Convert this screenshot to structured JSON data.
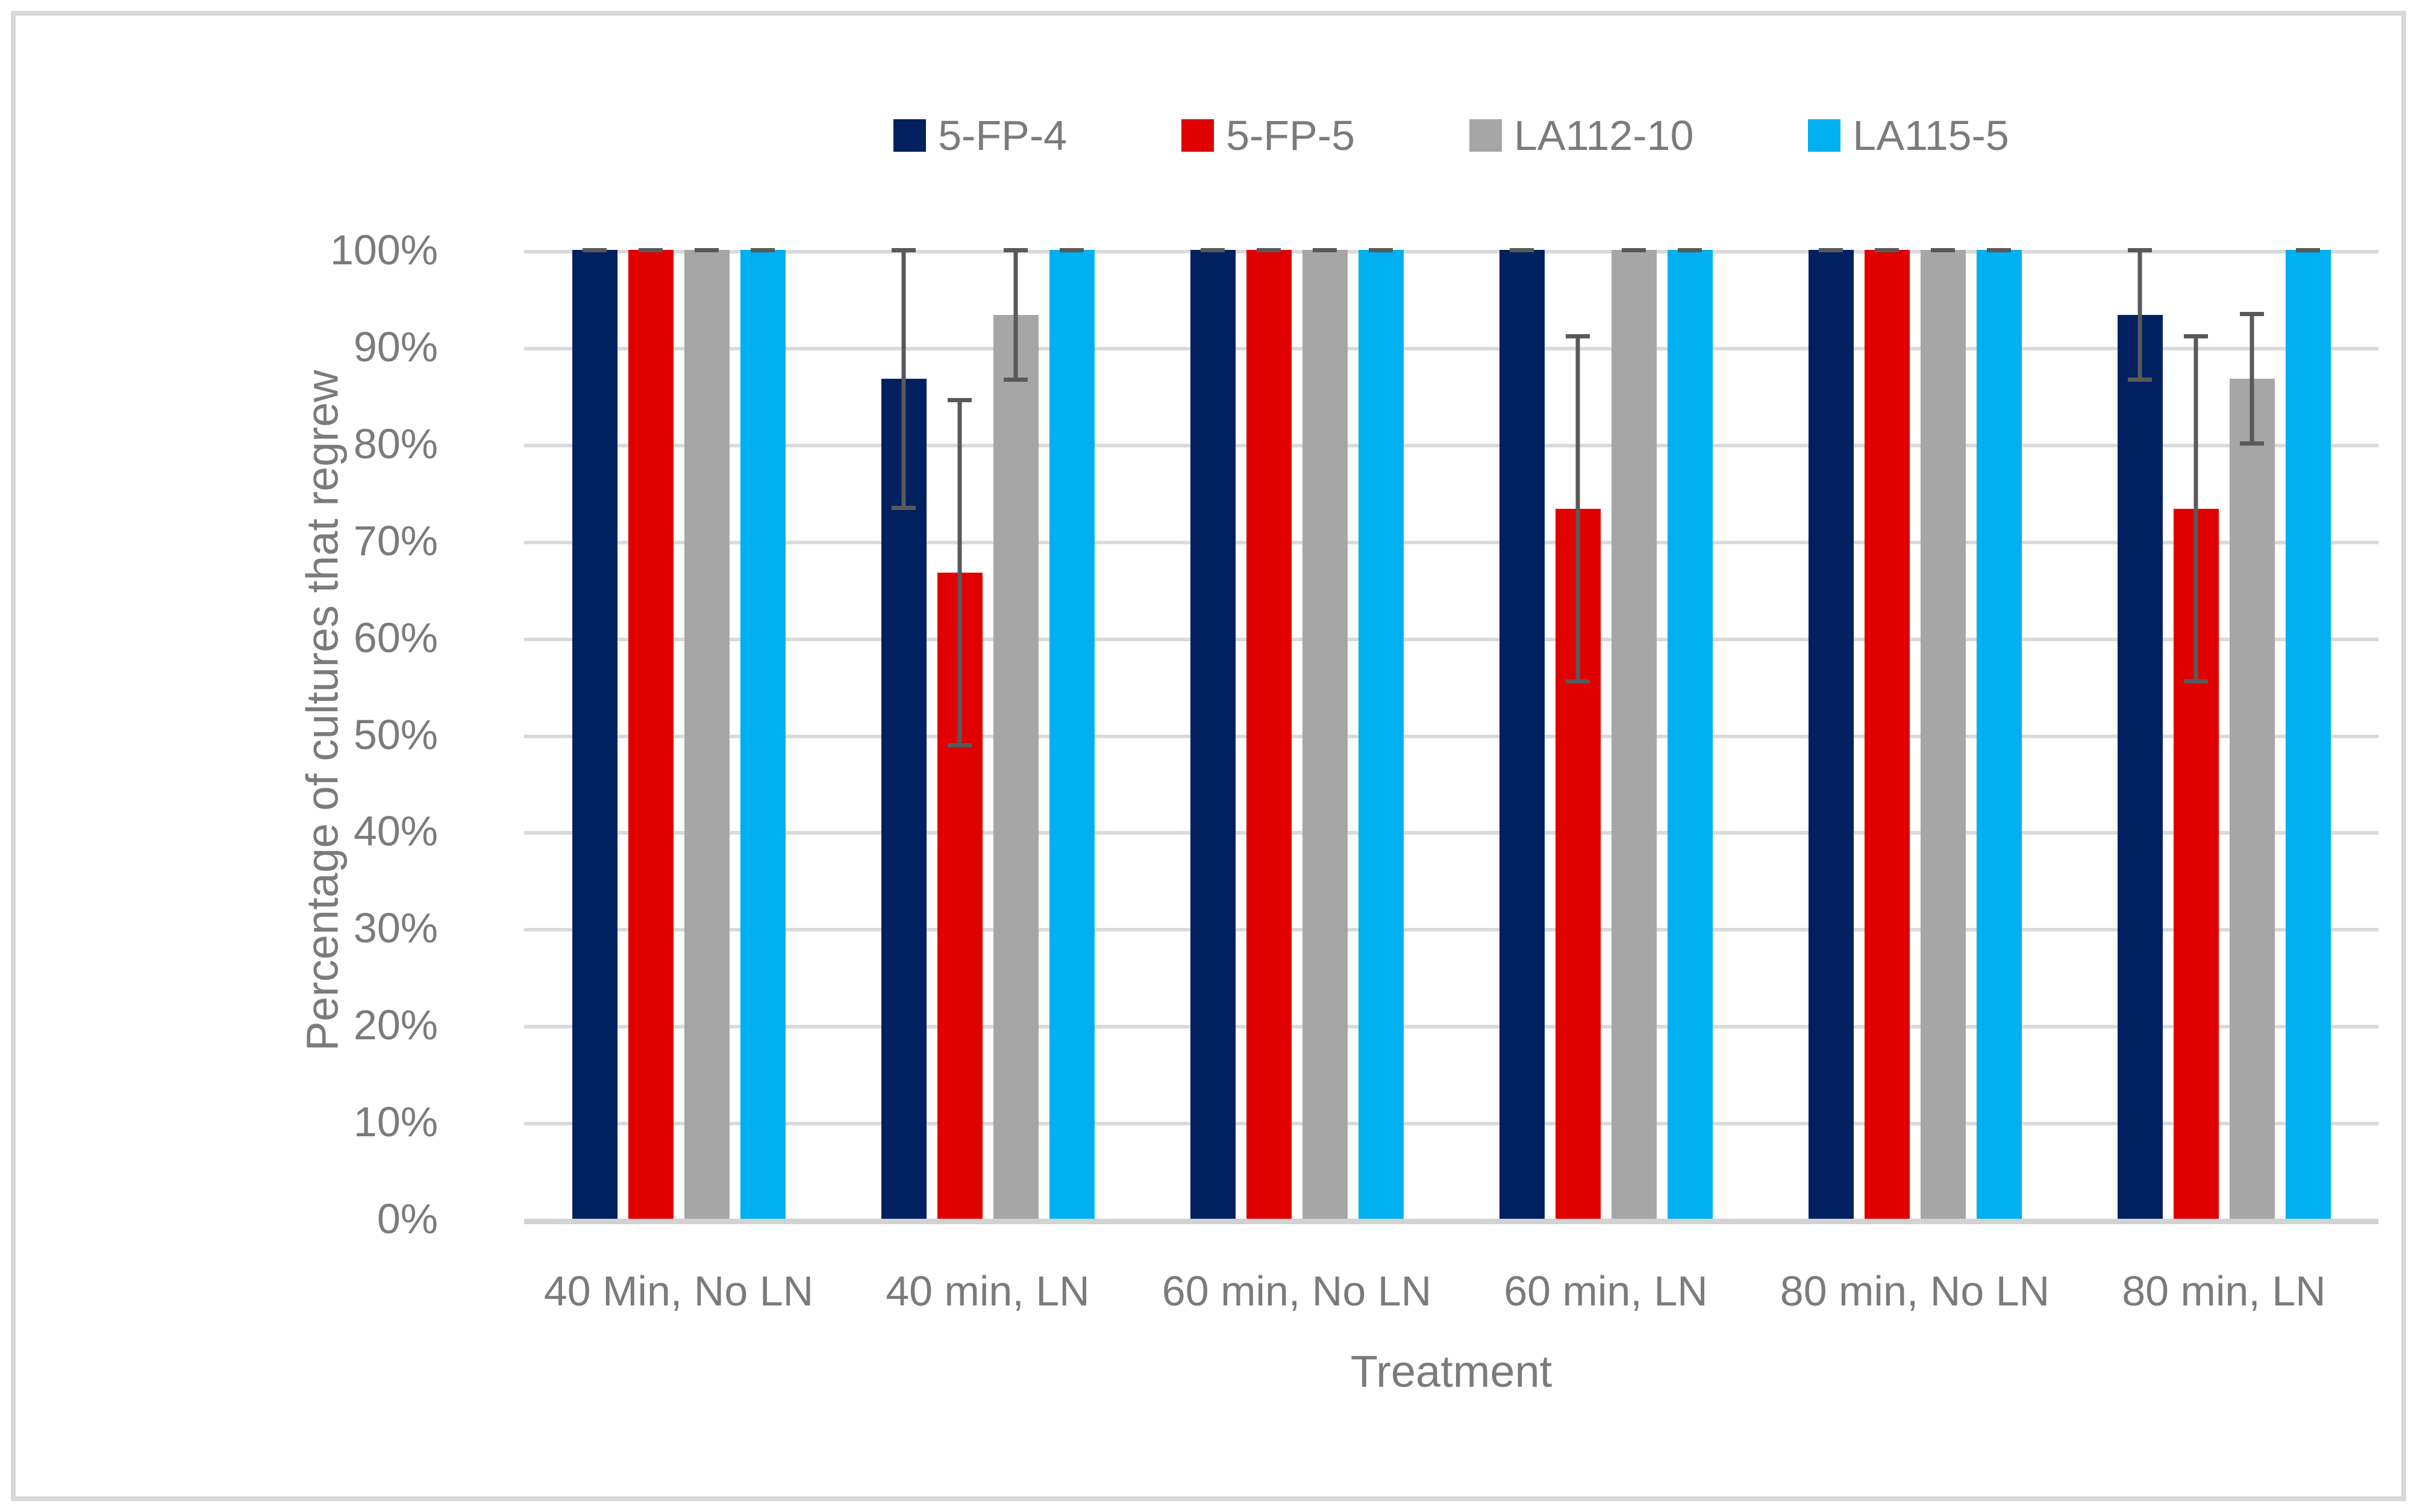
{
  "chart_data": {
    "type": "bar",
    "title": "",
    "xlabel": "Treatment",
    "ylabel": "Percentage of cultures that regrew",
    "ylim": [
      0,
      100
    ],
    "y_tick_labels": [
      "0%",
      "10%",
      "20%",
      "30%",
      "40%",
      "50%",
      "60%",
      "70%",
      "80%",
      "90%",
      "100%"
    ],
    "y_tick_values": [
      0,
      10,
      20,
      30,
      40,
      50,
      60,
      70,
      80,
      90,
      100
    ],
    "grid": true,
    "legend_position": "top-center",
    "categories": [
      "40 Min, No LN",
      "40 min, LN",
      "60 min, No LN",
      "60 min, LN",
      "80 min, No LN",
      "80 min, LN"
    ],
    "series": [
      {
        "name": "5-FP-4",
        "color": "#002060",
        "values": [
          100,
          86.7,
          100,
          100,
          100,
          93.3
        ],
        "error": [
          0,
          13.3,
          0,
          0,
          0,
          6.7
        ]
      },
      {
        "name": "5-FP-5",
        "color": "#E00000",
        "values": [
          100,
          66.7,
          100,
          73.3,
          100,
          73.3
        ],
        "error": [
          0,
          17.8,
          0,
          17.8,
          0,
          17.8
        ]
      },
      {
        "name": "LA112-10",
        "color": "#A6A6A6",
        "values": [
          100,
          93.3,
          100,
          100,
          100,
          86.7
        ],
        "error": [
          0,
          6.7,
          0,
          0,
          0,
          6.7
        ]
      },
      {
        "name": "LA115-5",
        "color": "#00B0F0",
        "values": [
          100,
          100,
          100,
          100,
          100,
          100
        ],
        "error": [
          0,
          0,
          0,
          0,
          0,
          0
        ]
      }
    ],
    "error_bar_color": "#595959",
    "styles": {
      "text_color": "#7B7B7B",
      "gridline_color": "#DADADA",
      "axis_line_color": "#D2D2D2",
      "chart_border_color": "#D9D9D9",
      "background": "#FFFFFF"
    }
  }
}
